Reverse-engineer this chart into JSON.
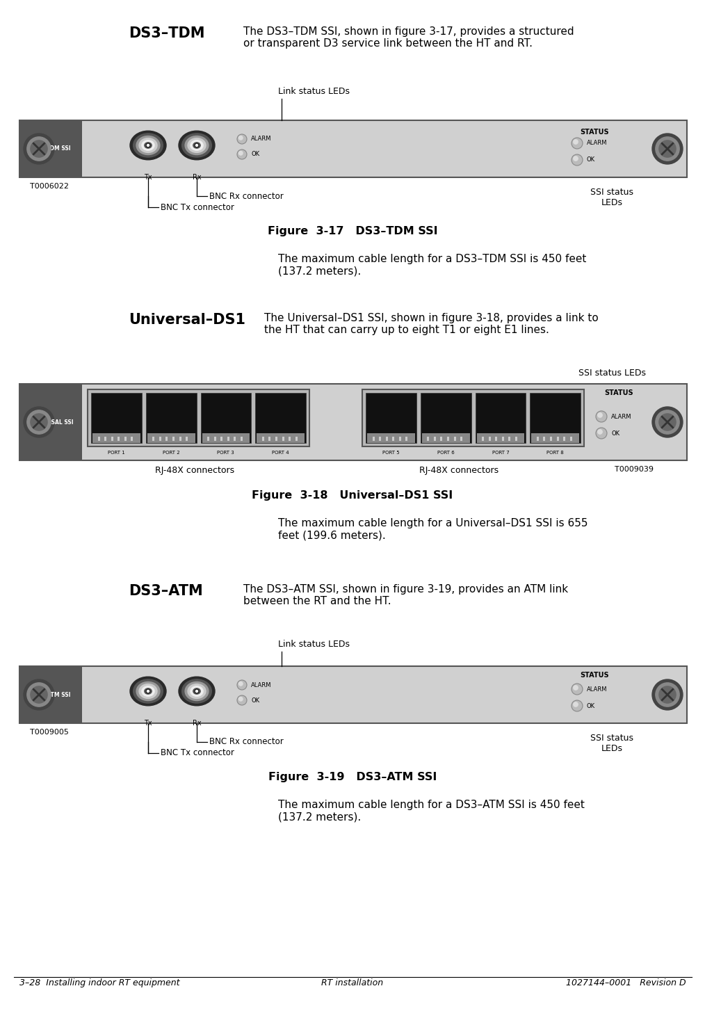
{
  "bg_color": "#ffffff",
  "page_width": 9.95,
  "page_height": 14.31,
  "footer_text_left": "3–28  Installing indoor RT equipment",
  "footer_text_center": "RT installation",
  "footer_text_right": "1027144–0001   Revision D",
  "section1_title": "DS3–TDM",
  "section1_body": "The DS3–TDM SSI, shown in figure 3-17, provides a structured\nor transparent D3 service link between the HT and RT.",
  "section2_title": "Universal–DS1",
  "section2_body": "The Universal–DS1 SSI, shown in figure 3-18, provides a link to\nthe HT that can carry up to eight T1 or eight E1 lines.",
  "section3_title": "DS3–ATM",
  "section3_body": "The DS3–ATM SSI, shown in figure 3-19, provides an ATM link\nbetween the RT and the HT.",
  "fig1_caption": "Figure  3-17   DS3–TDM SSI",
  "fig2_caption": "Figure  3-18   Universal–DS1 SSI",
  "fig3_caption": "Figure  3-19   DS3–ATM SSI",
  "fig1_note": "The maximum cable length for a DS3–TDM SSI is 450 feet\n(137.2 meters).",
  "fig2_note": "The maximum cable length for a Universal–DS1 SSI is 655\nfeet (199.6 meters).",
  "fig3_note": "The maximum cable length for a DS3–ATM SSI is 450 feet\n(137.2 meters).",
  "panel_color": "#d0d0d0",
  "panel_border": "#777777",
  "label_strip_color": "#555555",
  "fig1_label": "DS 3 TDM SSI",
  "fig2_label": "UNIVERSAL SSI",
  "fig3_label": "DS 3 ATM SSI",
  "status_label": "STATUS",
  "alarm_label": "ALARM",
  "ok_label": "OK",
  "link_status_leds": "Link status LEDs",
  "ssi_status_leds": "SSI status\nLEDs",
  "ssi_status_leds2": "SSI status LEDs",
  "bnc_rx": "BNC Rx connector",
  "bnc_tx": "BNC Tx connector",
  "tx_label": "Tx",
  "rx_label": "Rx",
  "t1_label": "T0006022",
  "t2_label": "T0009039",
  "t3_label": "T0009005",
  "rj48x_left": "RJ-48X connectors",
  "rj48x_right": "RJ-48X connectors",
  "port_labels": [
    "PORT 1",
    "PORT 2",
    "PORT 3",
    "PORT 4",
    "PORT 5",
    "PORT 6",
    "PORT 7",
    "PORT 8"
  ]
}
